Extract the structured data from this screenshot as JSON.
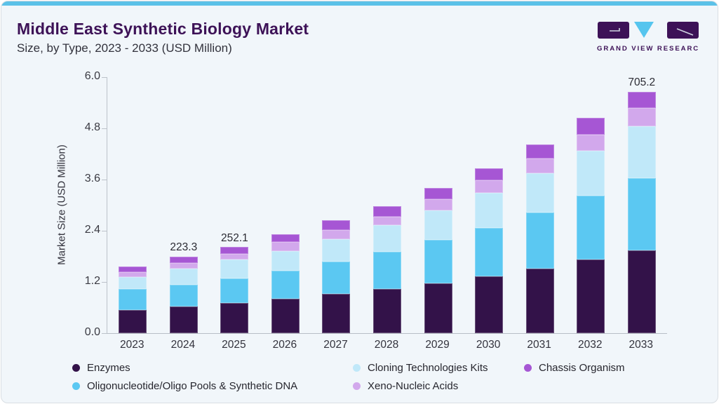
{
  "header": {
    "title": "Middle East Synthetic Biology Market",
    "subtitle": "Size, by Type, 2023 - 2033 (USD Million)",
    "logo_text": "GRAND VIEW RESEARCH"
  },
  "colors": {
    "accent_strip": "#5bc1e8",
    "card_bg": "#f1f6fa",
    "title_text": "#3d1257",
    "axis_line": "#bcc2ca",
    "enzymes": "#331249",
    "oligonucleotide": "#5bc8f2",
    "cloning": "#c0e8f9",
    "xeno": "#d2a8ec",
    "chassis": "#a656d4",
    "logo_purple": "#3d1257",
    "logo_cyan": "#56c5ee"
  },
  "chart_data": {
    "type": "bar",
    "stacked": true,
    "title": "Middle East Synthetic Biology Market Size, by Type, 2023 - 2033 (USD Million)",
    "ylabel": "Market Size (USD Million)",
    "ylim": [
      0,
      6.0
    ],
    "yticks": [
      "0.0",
      "1.2",
      "2.4",
      "3.6",
      "4.8",
      "6.0"
    ],
    "grid": false,
    "legend_position": "bottom",
    "categories": [
      "2023",
      "2024",
      "2025",
      "2026",
      "2027",
      "2028",
      "2029",
      "2030",
      "2031",
      "2032",
      "2033"
    ],
    "series": [
      {
        "name": "Enzymes",
        "color_key": "enzymes",
        "values": [
          0.55,
          0.62,
          0.7,
          0.8,
          0.92,
          1.03,
          1.17,
          1.33,
          1.52,
          1.73,
          1.97
        ]
      },
      {
        "name": "Oligonucleotide/Oligo Pools & Synthetic DNA",
        "color_key": "oligonucleotide",
        "values": [
          0.48,
          0.52,
          0.59,
          0.67,
          0.75,
          0.87,
          1.01,
          1.14,
          1.3,
          1.49,
          1.73
        ]
      },
      {
        "name": "Cloning Technologies Kits",
        "color_key": "cloning",
        "values": [
          0.28,
          0.38,
          0.43,
          0.46,
          0.54,
          0.63,
          0.69,
          0.82,
          0.93,
          1.06,
          1.24
        ]
      },
      {
        "name": "Xeno-Nucleic Acids",
        "color_key": "xeno",
        "values": [
          0.12,
          0.13,
          0.13,
          0.2,
          0.2,
          0.2,
          0.27,
          0.3,
          0.34,
          0.38,
          0.43
        ]
      },
      {
        "name": "Chassis Organism",
        "color_key": "chassis",
        "values": [
          0.14,
          0.15,
          0.17,
          0.19,
          0.24,
          0.25,
          0.26,
          0.28,
          0.33,
          0.38,
          0.4
        ]
      }
    ],
    "annotations": [
      {
        "category": "2024",
        "label": "223.3"
      },
      {
        "category": "2025",
        "label": "252.1"
      },
      {
        "category": "2033",
        "label": "705.2"
      }
    ],
    "legend": [
      {
        "label": "Enzymes",
        "color_key": "enzymes"
      },
      {
        "label": "Cloning Technologies Kits",
        "color_key": "cloning"
      },
      {
        "label": "Chassis Organism",
        "color_key": "chassis"
      },
      {
        "label": "Oligonucleotide/Oligo Pools & Synthetic DNA",
        "color_key": "oligonucleotide"
      },
      {
        "label": "Xeno-Nucleic Acids",
        "color_key": "xeno"
      }
    ]
  }
}
